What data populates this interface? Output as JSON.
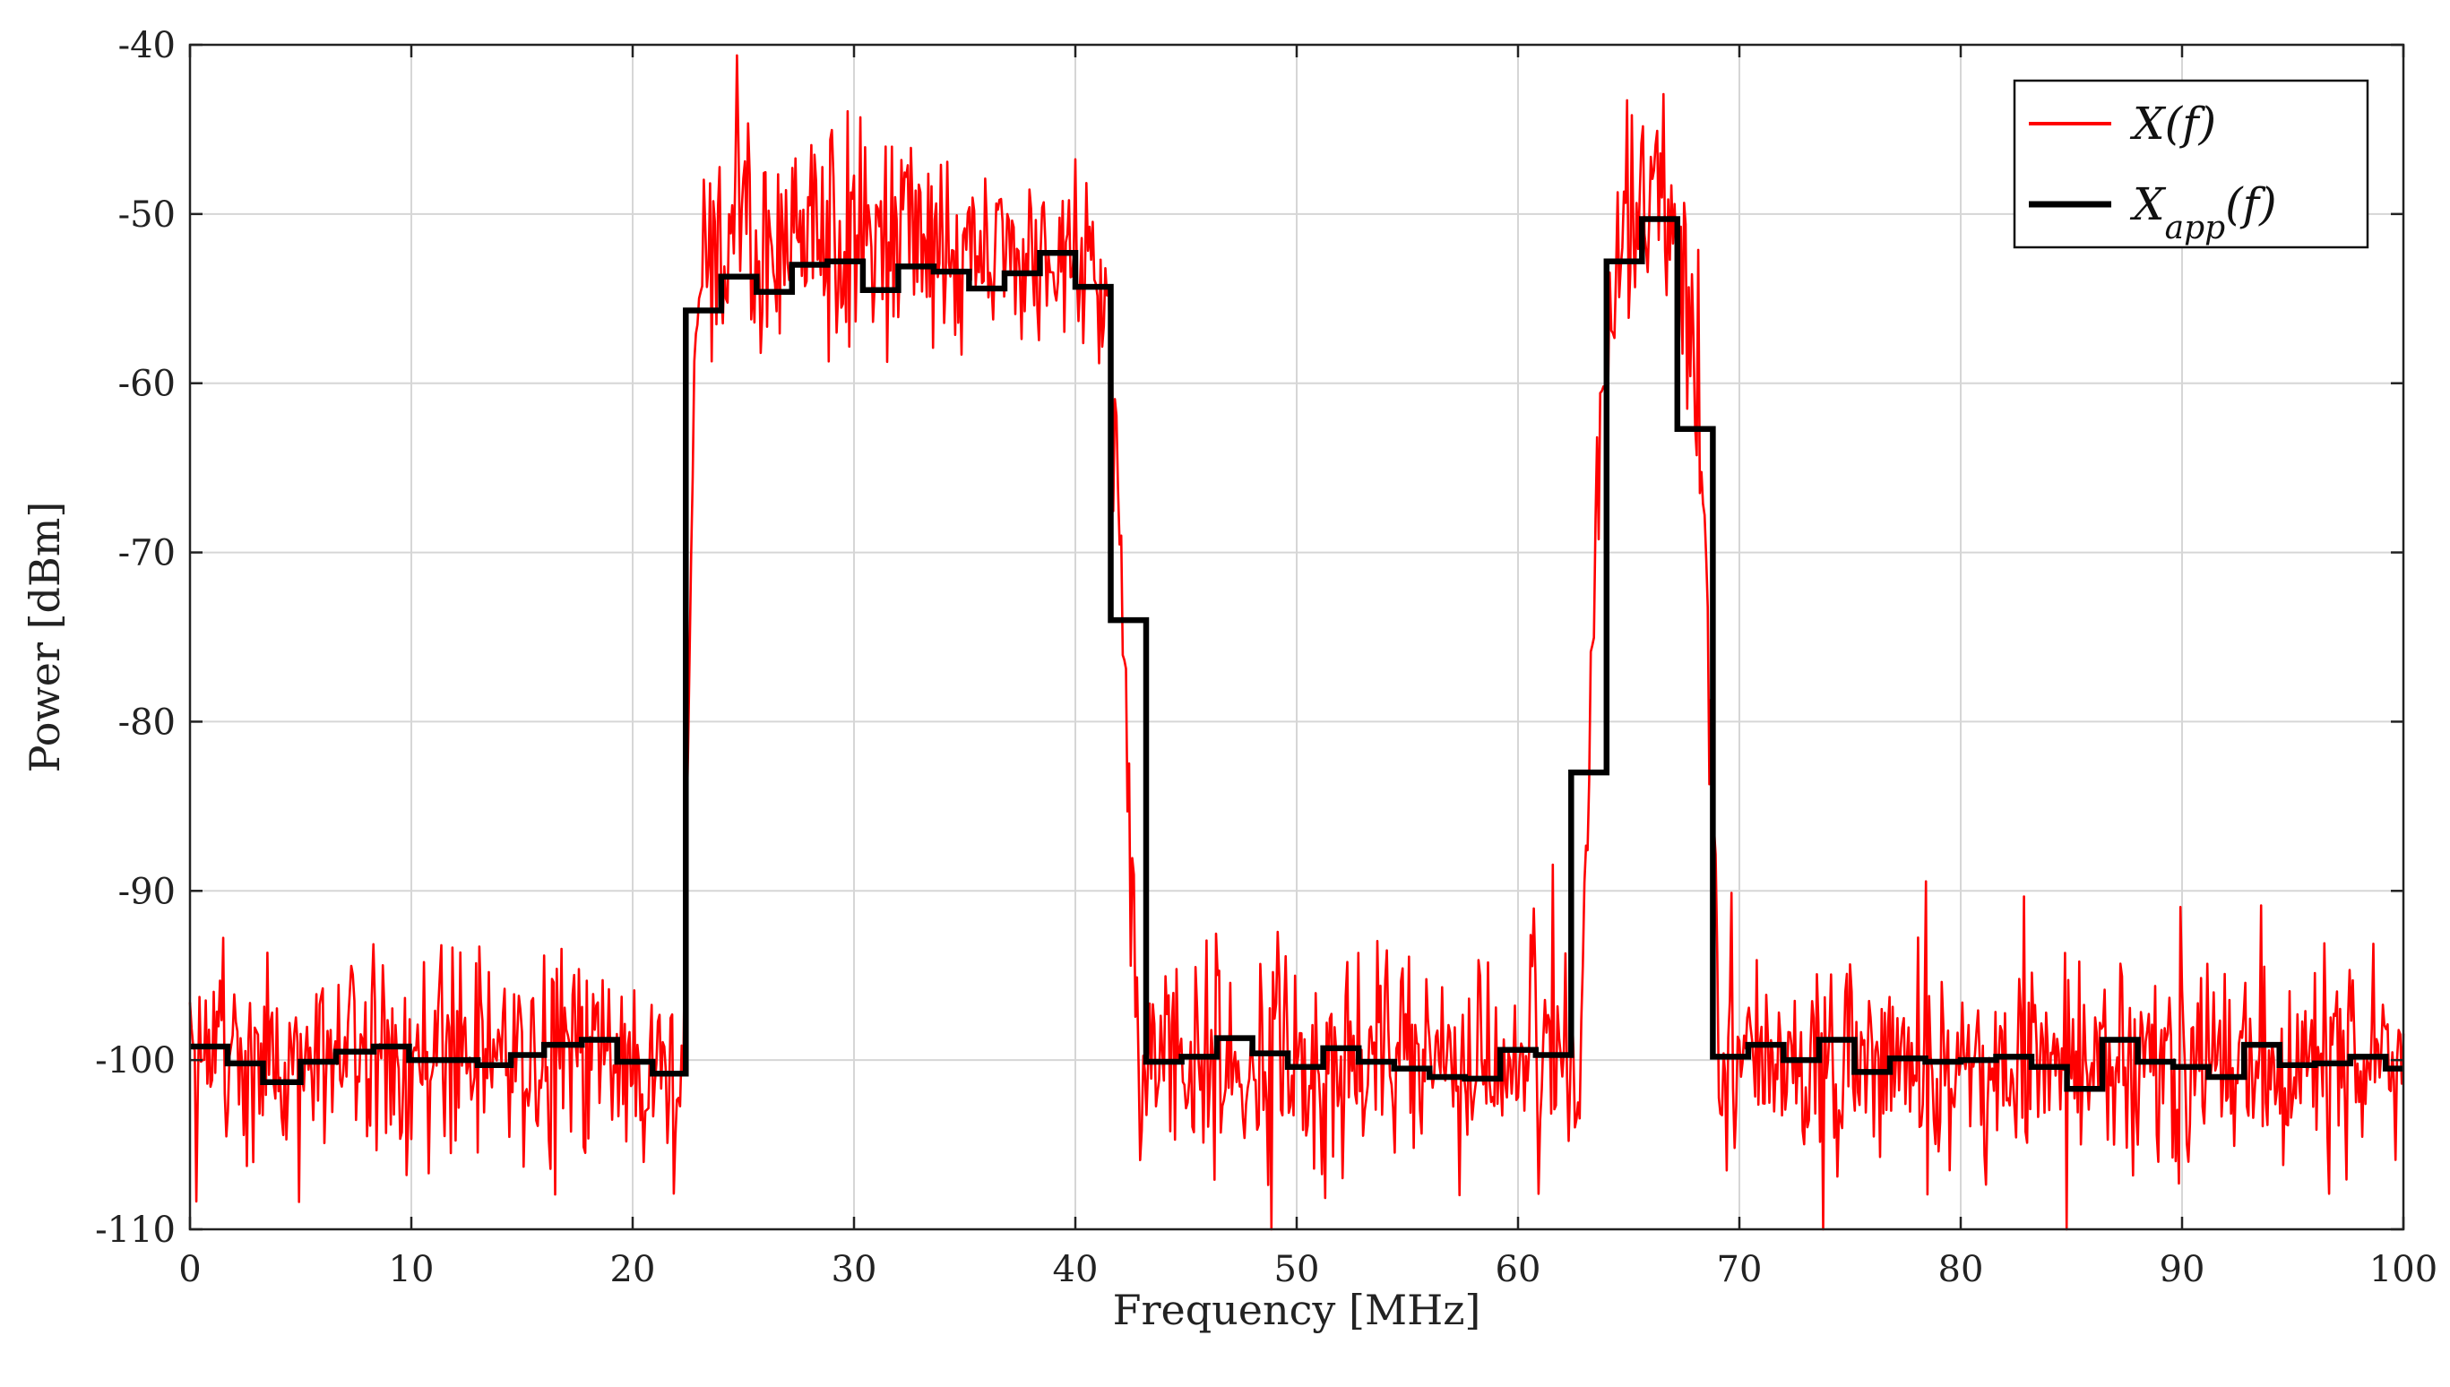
{
  "chart_data": {
    "type": "line",
    "xlabel": "Frequency [MHz]",
    "ylabel": "Power [dBm]",
    "xlim": [
      0,
      100
    ],
    "ylim": [
      -110,
      -40
    ],
    "x_ticks": [
      0,
      10,
      20,
      30,
      40,
      50,
      60,
      70,
      80,
      90,
      100
    ],
    "y_ticks": [
      -40,
      -50,
      -60,
      -70,
      -80,
      -90,
      -100,
      -110
    ],
    "grid": true,
    "legend_position": "top-right",
    "series": [
      {
        "name": "X(f)",
        "color": "#ff0000",
        "style": "noisy",
        "envelope": [
          [
            0,
            -100
          ],
          [
            22.3,
            -100
          ],
          [
            22.8,
            -56
          ],
          [
            23.3,
            -53
          ],
          [
            25,
            -51.5
          ],
          [
            30,
            -51
          ],
          [
            35,
            -52
          ],
          [
            38,
            -51.5
          ],
          [
            40.5,
            -52
          ],
          [
            41.3,
            -54
          ],
          [
            41.8,
            -60
          ],
          [
            42.3,
            -80
          ],
          [
            42.8,
            -100
          ],
          [
            62.8,
            -100
          ],
          [
            63.3,
            -80
          ],
          [
            63.8,
            -60
          ],
          [
            64.6,
            -53
          ],
          [
            65.5,
            -49
          ],
          [
            66.5,
            -49
          ],
          [
            67.2,
            -53
          ],
          [
            67.8,
            -57
          ],
          [
            68.3,
            -63
          ],
          [
            68.7,
            -80
          ],
          [
            69.1,
            -100
          ],
          [
            100,
            -100
          ]
        ],
        "noise_amplitude_db": 3
      },
      {
        "name": "X_app(f)",
        "color": "#000000",
        "style": "step",
        "steps": [
          [
            0,
            -99.2
          ],
          [
            1.7,
            -100.2
          ],
          [
            3.3,
            -101.3
          ],
          [
            5,
            -100.1
          ],
          [
            6.6,
            -99.5
          ],
          [
            8.3,
            -99.2
          ],
          [
            9.9,
            -100
          ],
          [
            12.6,
            -100
          ],
          [
            13,
            -100.3
          ],
          [
            14.5,
            -99.7
          ],
          [
            16,
            -99.1
          ],
          [
            17.7,
            -98.8
          ],
          [
            19.3,
            -100.1
          ],
          [
            20.9,
            -100.8
          ],
          [
            22.4,
            -55.7
          ],
          [
            24,
            -53.7
          ],
          [
            25.6,
            -54.6
          ],
          [
            27.2,
            -53
          ],
          [
            28.8,
            -52.8
          ],
          [
            30.4,
            -54.5
          ],
          [
            32,
            -53.1
          ],
          [
            33.6,
            -53.4
          ],
          [
            35.2,
            -54.4
          ],
          [
            36.8,
            -53.5
          ],
          [
            38.4,
            -52.3
          ],
          [
            40,
            -54.3
          ],
          [
            41.6,
            -74
          ],
          [
            43.2,
            -100.1
          ],
          [
            44.8,
            -99.8
          ],
          [
            46.4,
            -98.7
          ],
          [
            48,
            -99.6
          ],
          [
            49.6,
            -100.4
          ],
          [
            51.2,
            -99.3
          ],
          [
            52.8,
            -100.1
          ],
          [
            54.4,
            -100.5
          ],
          [
            56,
            -101
          ],
          [
            57.6,
            -101.1
          ],
          [
            59.2,
            -99.4
          ],
          [
            60.8,
            -99.7
          ],
          [
            62.4,
            -83
          ],
          [
            64,
            -52.8
          ],
          [
            65.6,
            -50.3
          ],
          [
            67.2,
            -62.7
          ],
          [
            68.8,
            -99.8
          ],
          [
            70.4,
            -99.1
          ],
          [
            72,
            -100
          ],
          [
            73.6,
            -98.8
          ],
          [
            75.2,
            -100.7
          ],
          [
            76.8,
            -99.9
          ],
          [
            78.4,
            -100.1
          ],
          [
            80,
            -100
          ],
          [
            81.6,
            -99.8
          ],
          [
            83.2,
            -100.4
          ],
          [
            84.8,
            -101.7
          ],
          [
            86.4,
            -98.8
          ],
          [
            88,
            -100.1
          ],
          [
            89.6,
            -100.4
          ],
          [
            91.2,
            -101
          ],
          [
            92.8,
            -99.1
          ],
          [
            94.4,
            -100.3
          ],
          [
            96,
            -100.2
          ],
          [
            97.6,
            -99.8
          ],
          [
            99.2,
            -100.5
          ],
          [
            100,
            -100.5
          ]
        ]
      }
    ]
  },
  "legend": {
    "items": [
      {
        "label": "X(f)",
        "color": "#ff0000"
      },
      {
        "label": "X",
        "sub": "app",
        "suffix": "(f)",
        "color": "#000000"
      }
    ]
  }
}
